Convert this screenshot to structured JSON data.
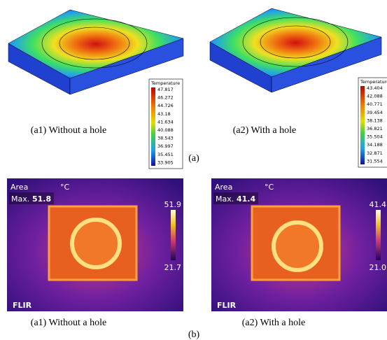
{
  "simulation": [
    {
      "legend_title": "Temperature",
      "legend_values": [
        "47.817",
        "46.272",
        "44.726",
        "43.18",
        "41.634",
        "40.088",
        "38.543",
        "36.997",
        "35.451",
        "33.905"
      ],
      "caption": "(a1) Without a hole"
    },
    {
      "legend_title": "Temperature",
      "legend_values": [
        "43.404",
        "42.088",
        "40.771",
        "39.454",
        "38.138",
        "36.821",
        "35.504",
        "34.188",
        "32.871",
        "31.554"
      ],
      "caption": "(a2) With a hole"
    }
  ],
  "simulation_label": "(a)",
  "thermal": [
    {
      "area": "Area",
      "unit": "°C",
      "max_label": "Max.",
      "max_value": "51.8",
      "scale_top": "51.9",
      "scale_bottom": "21.7",
      "brand": "FLIR",
      "caption": "(a1) Without a hole"
    },
    {
      "area": "Area",
      "unit": "°C",
      "max_label": "Max.",
      "max_value": "41.4",
      "scale_top": "41.4",
      "scale_bottom": "21.0",
      "brand": "FLIR",
      "caption": "(a2) With a hole"
    }
  ],
  "thermal_label": "(b)"
}
